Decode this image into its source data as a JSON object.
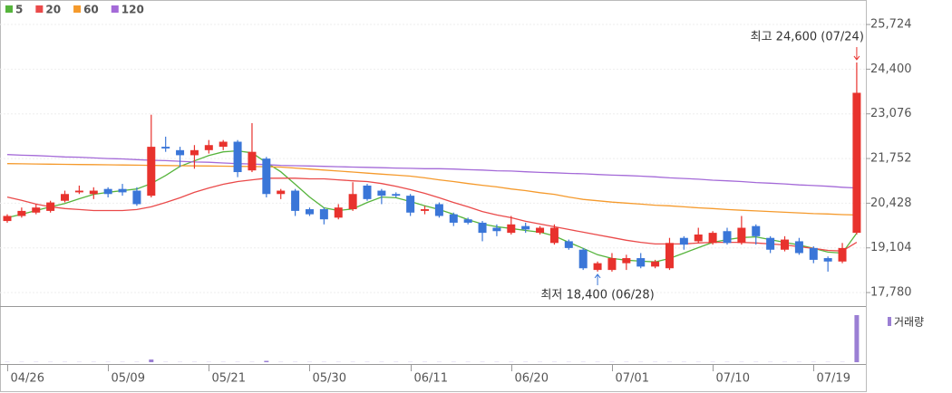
{
  "chart_data": {
    "type": "candlestick",
    "categories": [
      "04/26",
      null,
      null,
      null,
      null,
      null,
      null,
      "05/09",
      null,
      null,
      null,
      null,
      null,
      null,
      "05/21",
      null,
      null,
      null,
      null,
      null,
      null,
      "05/30",
      null,
      null,
      null,
      null,
      null,
      null,
      "06/11",
      null,
      null,
      null,
      null,
      null,
      null,
      "06/20",
      null,
      null,
      null,
      null,
      null,
      null,
      "07/01",
      null,
      null,
      null,
      null,
      null,
      null,
      "07/10",
      null,
      null,
      null,
      null,
      null,
      null,
      "07/19",
      null,
      null,
      null
    ],
    "open": [
      19900,
      20050,
      20150,
      20200,
      20500,
      20750,
      20700,
      20850,
      20850,
      20800,
      20650,
      22100,
      22000,
      21850,
      22000,
      22100,
      22250,
      21400,
      21750,
      20700,
      20800,
      20250,
      20250,
      20000,
      20250,
      20950,
      20800,
      20700,
      20650,
      20200,
      20400,
      20100,
      19950,
      19850,
      19700,
      19550,
      19750,
      19550,
      19250,
      19300,
      19050,
      18450,
      18450,
      18650,
      18800,
      18550,
      18500,
      19400,
      19300,
      19250,
      19600,
      19250,
      19750,
      19400,
      19050,
      19300,
      19100,
      18800,
      18700,
      19550
    ],
    "high": [
      20100,
      20300,
      20400,
      20500,
      20800,
      20950,
      20900,
      20900,
      21000,
      20900,
      23050,
      22400,
      22100,
      22150,
      22300,
      22300,
      22300,
      22800,
      21800,
      20850,
      20850,
      20300,
      20300,
      20400,
      21050,
      21000,
      20850,
      20750,
      20700,
      20350,
      20450,
      20150,
      20000,
      19900,
      19800,
      20050,
      19850,
      19750,
      19800,
      19350,
      19100,
      18700,
      18950,
      18900,
      18950,
      18750,
      19400,
      19450,
      19700,
      19600,
      19700,
      20050,
      19800,
      19450,
      19450,
      19400,
      19150,
      18850,
      19250,
      24600
    ],
    "low": [
      19850,
      20000,
      20100,
      20150,
      20450,
      20700,
      20550,
      20600,
      20650,
      20350,
      20600,
      21950,
      21500,
      21450,
      21900,
      22000,
      21200,
      21350,
      20600,
      20550,
      20050,
      20050,
      19800,
      19950,
      20200,
      20500,
      20400,
      20600,
      20050,
      20100,
      20000,
      19750,
      19800,
      19300,
      19450,
      19500,
      19550,
      19500,
      19200,
      19050,
      18450,
      18400,
      18400,
      18450,
      18500,
      18500,
      18450,
      19050,
      19250,
      19200,
      19200,
      19200,
      19200,
      18950,
      19000,
      18900,
      18650,
      18400,
      18650,
      19500
    ],
    "close": [
      20050,
      20200,
      20300,
      20450,
      20700,
      20800,
      20800,
      20700,
      20750,
      20400,
      22100,
      22050,
      21850,
      22000,
      22150,
      22250,
      21350,
      21950,
      20700,
      20800,
      20200,
      20100,
      19950,
      20300,
      20700,
      20550,
      20650,
      20650,
      20150,
      20250,
      20050,
      19850,
      19850,
      19550,
      19600,
      19800,
      19650,
      19700,
      19700,
      19100,
      18500,
      18650,
      18800,
      18800,
      18550,
      18700,
      19250,
      19200,
      19500,
      19550,
      19250,
      19700,
      19450,
      19050,
      19350,
      18950,
      18750,
      18700,
      19100,
      23700
    ],
    "up_color": "#e8322d",
    "down_color": "#3a76d8",
    "series": [
      {
        "name": "5",
        "color": "#56b43c",
        "values": [
          20000,
          20100,
          20210,
          20320,
          20420,
          20560,
          20690,
          20750,
          20800,
          20850,
          21010,
          21250,
          21520,
          21680,
          21840,
          21950,
          21980,
          21920,
          21630,
          21360,
          20990,
          20610,
          20290,
          20210,
          20260,
          20450,
          20610,
          20590,
          20480,
          20350,
          20240,
          20100,
          19940,
          19810,
          19730,
          19680,
          19620,
          19570,
          19460,
          19270,
          19090,
          18900,
          18790,
          18740,
          18710,
          18690,
          18790,
          18950,
          19110,
          19270,
          19350,
          19410,
          19430,
          19350,
          19270,
          19190,
          19090,
          18980,
          18950,
          19540
        ]
      },
      {
        "name": "20",
        "color": "#ea4a4a",
        "values": [
          20610,
          20510,
          20400,
          20320,
          20270,
          20240,
          20210,
          20210,
          20210,
          20240,
          20320,
          20450,
          20590,
          20750,
          20880,
          20990,
          21070,
          21120,
          21170,
          21170,
          21170,
          21150,
          21150,
          21120,
          21090,
          21070,
          21010,
          20930,
          20830,
          20720,
          20590,
          20450,
          20320,
          20180,
          20080,
          20000,
          19890,
          19810,
          19730,
          19650,
          19570,
          19490,
          19410,
          19330,
          19270,
          19220,
          19220,
          19220,
          19250,
          19270,
          19270,
          19270,
          19250,
          19220,
          19190,
          19140,
          19090,
          19030,
          19010,
          19270
        ]
      },
      {
        "name": "60",
        "color": "#f59a2c",
        "values": [
          21600,
          21595,
          21590,
          21585,
          21580,
          21575,
          21570,
          21565,
          21560,
          21555,
          21550,
          21545,
          21540,
          21535,
          21530,
          21525,
          21520,
          21515,
          21510,
          21500,
          21470,
          21440,
          21410,
          21380,
          21350,
          21320,
          21290,
          21260,
          21230,
          21180,
          21120,
          21070,
          21010,
          20960,
          20910,
          20850,
          20800,
          20740,
          20690,
          20610,
          20540,
          20500,
          20460,
          20430,
          20400,
          20370,
          20350,
          20320,
          20290,
          20270,
          20240,
          20220,
          20200,
          20180,
          20160,
          20140,
          20120,
          20110,
          20090,
          20080
        ]
      },
      {
        "name": "120",
        "color": "#a46ad8",
        "values": [
          21870,
          21850,
          21840,
          21820,
          21800,
          21790,
          21770,
          21750,
          21740,
          21720,
          21700,
          21690,
          21670,
          21650,
          21640,
          21620,
          21600,
          21590,
          21570,
          21550,
          21540,
          21530,
          21520,
          21510,
          21500,
          21490,
          21480,
          21470,
          21460,
          21450,
          21450,
          21440,
          21420,
          21410,
          21390,
          21380,
          21360,
          21340,
          21330,
          21310,
          21300,
          21280,
          21260,
          21250,
          21230,
          21210,
          21180,
          21160,
          21140,
          21110,
          21090,
          21070,
          21040,
          21020,
          21000,
          20970,
          20950,
          20930,
          20900,
          20880
        ]
      }
    ],
    "volume": {
      "name": "거래량",
      "color": "#9b7fd4",
      "values": [
        20,
        20,
        20,
        20,
        20,
        20,
        20,
        20,
        20,
        20,
        300,
        20,
        20,
        20,
        20,
        20,
        20,
        20,
        150,
        20,
        20,
        20,
        20,
        20,
        20,
        20,
        20,
        20,
        20,
        20,
        20,
        20,
        20,
        20,
        20,
        20,
        20,
        20,
        20,
        20,
        20,
        20,
        20,
        20,
        20,
        20,
        20,
        20,
        20,
        20,
        20,
        20,
        20,
        20,
        20,
        20,
        20,
        20,
        20,
        5200
      ]
    },
    "ylim": [
      17460,
      26450
    ],
    "yticks": [
      {
        "value": 17780,
        "label": "17,780"
      },
      {
        "value": 19104,
        "label": "19,104"
      },
      {
        "value": 20428,
        "label": "20,428"
      },
      {
        "value": 21752,
        "label": "21,752"
      },
      {
        "value": 23076,
        "label": "23,076"
      },
      {
        "value": 24400,
        "label": "24,400"
      },
      {
        "value": 25724,
        "label": "25,724"
      }
    ],
    "grid": true,
    "annotations": {
      "high": "최고 24,600 (07/24)",
      "low": "최저 18,400 (06/28)"
    }
  }
}
